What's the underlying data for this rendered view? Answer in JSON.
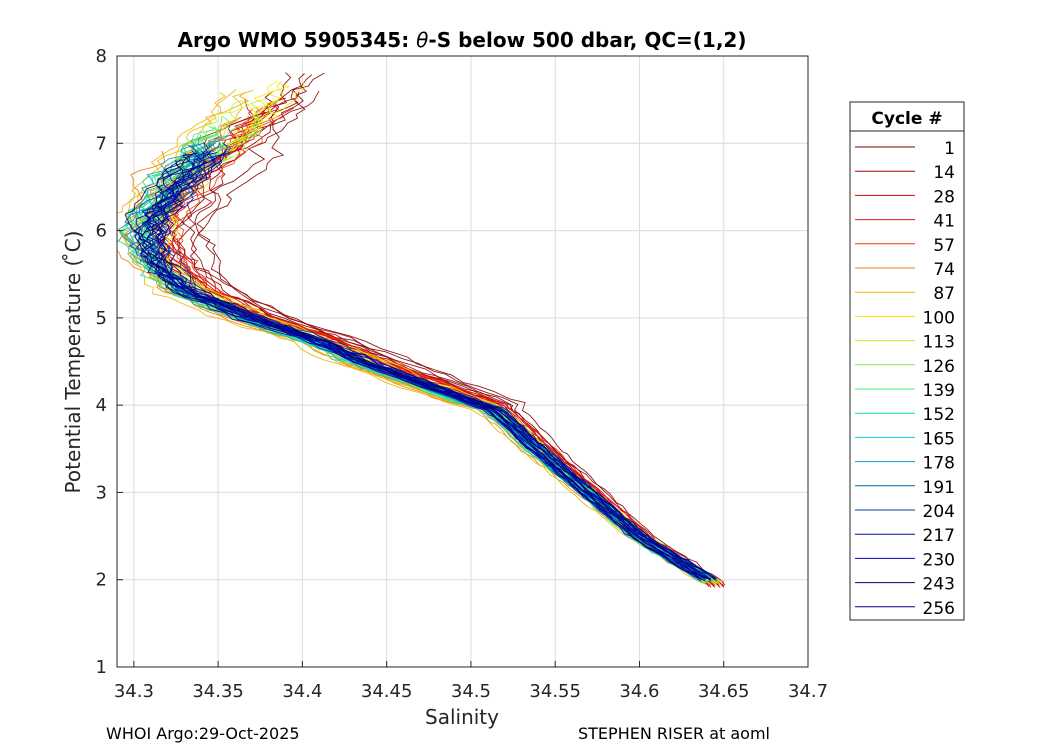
{
  "chart_data": {
    "type": "line",
    "title_prefix": "Argo WMO 5905345: ",
    "title_theta": "θ",
    "title_suffix": "-S below 500 dbar,  QC=(1,2)",
    "xlabel": "Salinity",
    "ylabel": "Potential Temperature ( ̊C)",
    "xlim": [
      34.29,
      34.7
    ],
    "ylim": [
      1,
      8
    ],
    "grid": true,
    "xticks": [
      34.3,
      34.35,
      34.4,
      34.45,
      34.5,
      34.55,
      34.6,
      34.65,
      34.7
    ],
    "xtick_labels": [
      "34.3",
      "34.35",
      "34.4",
      "34.45",
      "34.5",
      "34.55",
      "34.6",
      "34.65",
      "34.7"
    ],
    "yticks": [
      1,
      2,
      3,
      4,
      5,
      6,
      7,
      8
    ],
    "ytick_labels": [
      "1",
      "2",
      "3",
      "4",
      "5",
      "6",
      "7",
      "8"
    ],
    "legend": {
      "title": "Cycle #",
      "placement": "outside-right",
      "entries": [
        {
          "label": "1",
          "color": "#800000"
        },
        {
          "label": "14",
          "color": "#a00000"
        },
        {
          "label": "28",
          "color": "#d40000"
        },
        {
          "label": "41",
          "color": "#e81010"
        },
        {
          "label": "57",
          "color": "#ee4000"
        },
        {
          "label": "74",
          "color": "#f07800"
        },
        {
          "label": "87",
          "color": "#f0b000"
        },
        {
          "label": "100",
          "color": "#f4e800"
        },
        {
          "label": "113",
          "color": "#c0f020"
        },
        {
          "label": "126",
          "color": "#80f040"
        },
        {
          "label": "139",
          "color": "#40f070"
        },
        {
          "label": "152",
          "color": "#10e0a0"
        },
        {
          "label": "165",
          "color": "#10c8d0"
        },
        {
          "label": "178",
          "color": "#10a0c8"
        },
        {
          "label": "191",
          "color": "#006aa0"
        },
        {
          "label": "204",
          "color": "#0040a0"
        },
        {
          "label": "217",
          "color": "#0010b0"
        },
        {
          "label": "230",
          "color": "#0000c0"
        },
        {
          "label": "243",
          "color": "#000070"
        },
        {
          "label": "256",
          "color": "#000090"
        }
      ]
    },
    "profile_shape": [
      [
        34.385,
        7.7
      ],
      [
        34.37,
        7.4
      ],
      [
        34.35,
        7.0
      ],
      [
        34.33,
        6.6
      ],
      [
        34.315,
        6.2
      ],
      [
        34.312,
        5.9
      ],
      [
        34.318,
        5.6
      ],
      [
        34.335,
        5.3
      ],
      [
        34.37,
        5.0
      ],
      [
        34.41,
        4.75
      ],
      [
        34.445,
        4.45
      ],
      [
        34.48,
        4.2
      ],
      [
        34.515,
        3.95
      ],
      [
        34.54,
        3.5
      ],
      [
        34.57,
        3.0
      ],
      [
        34.6,
        2.5
      ],
      [
        34.645,
        1.95
      ]
    ],
    "series": [
      {
        "name": "1",
        "cycle": 1,
        "color": "#800000",
        "s_offset": 0.02,
        "t_top": 7.8,
        "t_bottom": 1.92
      },
      {
        "name": "14",
        "cycle": 14,
        "color": "#a00000",
        "s_offset": 0.012,
        "t_top": 7.6,
        "t_bottom": 1.93
      },
      {
        "name": "28",
        "cycle": 28,
        "color": "#d40000",
        "s_offset": 0.009,
        "t_top": 7.5,
        "t_bottom": 1.93
      },
      {
        "name": "41",
        "cycle": 41,
        "color": "#e81010",
        "s_offset": 0.007,
        "t_top": 7.4,
        "t_bottom": 1.94
      },
      {
        "name": "57",
        "cycle": 57,
        "color": "#ee4000",
        "s_offset": 0.005,
        "t_top": 7.3,
        "t_bottom": 1.95
      },
      {
        "name": "74",
        "cycle": 74,
        "color": "#f07800",
        "s_offset": -0.012,
        "t_top": 6.9,
        "t_bottom": 1.95
      },
      {
        "name": "87",
        "cycle": 87,
        "color": "#f0b000",
        "s_offset": -0.015,
        "t_top": 7.6,
        "t_bottom": 1.96
      },
      {
        "name": "100",
        "cycle": 100,
        "color": "#f4e800",
        "s_offset": 0.003,
        "t_top": 7.7,
        "t_bottom": 1.96
      },
      {
        "name": "113",
        "cycle": 113,
        "color": "#c0f020",
        "s_offset": 0.0,
        "t_top": 7.5,
        "t_bottom": 1.97
      },
      {
        "name": "126",
        "cycle": 126,
        "color": "#80f040",
        "s_offset": -0.004,
        "t_top": 7.3,
        "t_bottom": 1.97
      },
      {
        "name": "139",
        "cycle": 139,
        "color": "#40f070",
        "s_offset": -0.006,
        "t_top": 7.2,
        "t_bottom": 1.98
      },
      {
        "name": "152",
        "cycle": 152,
        "color": "#10e0a0",
        "s_offset": -0.008,
        "t_top": 7.0,
        "t_bottom": 1.98
      },
      {
        "name": "165",
        "cycle": 165,
        "color": "#10c8d0",
        "s_offset": -0.006,
        "t_top": 7.0,
        "t_bottom": 1.99
      },
      {
        "name": "178",
        "cycle": 178,
        "color": "#10a0c8",
        "s_offset": -0.004,
        "t_top": 7.1,
        "t_bottom": 1.99
      },
      {
        "name": "191",
        "cycle": 191,
        "color": "#006aa0",
        "s_offset": -0.003,
        "t_top": 7.0,
        "t_bottom": 2.0
      },
      {
        "name": "204",
        "cycle": 204,
        "color": "#0040a0",
        "s_offset": -0.002,
        "t_top": 7.0,
        "t_bottom": 2.0
      },
      {
        "name": "217",
        "cycle": 217,
        "color": "#0010b0",
        "s_offset": -0.001,
        "t_top": 6.9,
        "t_bottom": 2.0
      },
      {
        "name": "230",
        "cycle": 230,
        "color": "#0000c0",
        "s_offset": -0.002,
        "t_top": 6.9,
        "t_bottom": 2.0
      },
      {
        "name": "243",
        "cycle": 243,
        "color": "#000070",
        "s_offset": -0.001,
        "t_top": 6.9,
        "t_bottom": 2.0
      },
      {
        "name": "256",
        "cycle": 256,
        "color": "#000090",
        "s_offset": -0.001,
        "t_top": 6.8,
        "t_bottom": 2.0
      }
    ]
  },
  "footer": {
    "left": "WHOI Argo:29-Oct-2025",
    "right": "STEPHEN RISER at aoml"
  }
}
